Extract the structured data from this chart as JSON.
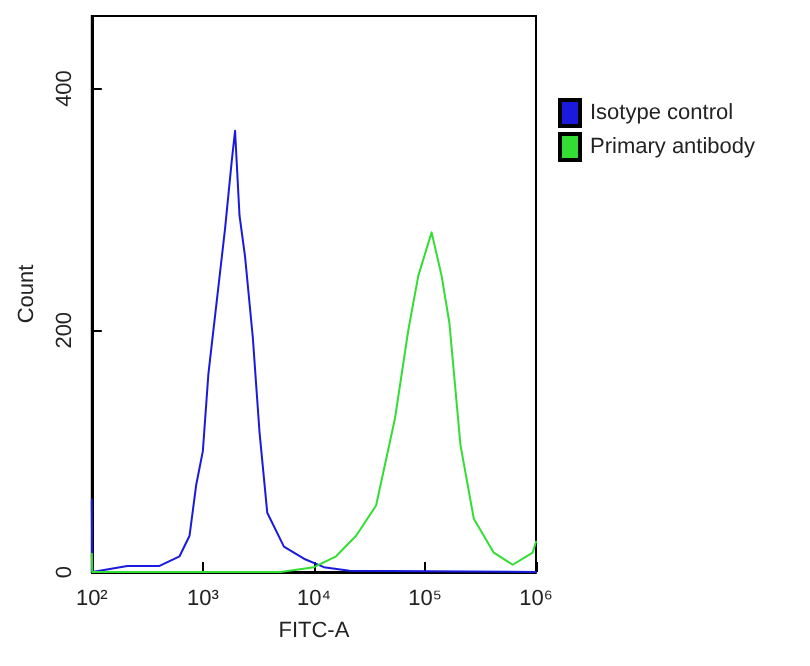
{
  "chart_data": {
    "type": "line",
    "xlabel": "FITC-A",
    "ylabel": "Count",
    "log": "x",
    "xlim": [
      100,
      1000000
    ],
    "xticks": [
      {
        "value": 100,
        "label": "10²"
      },
      {
        "value": 1000,
        "label": "10³"
      },
      {
        "value": 10000,
        "label": "10⁴"
      },
      {
        "value": 100000,
        "label": "10⁵"
      },
      {
        "value": 1000000,
        "label": "10⁶"
      }
    ],
    "ylim": [
      0,
      460
    ],
    "yticks": [
      0,
      200,
      400
    ],
    "grid": false,
    "legend": "right",
    "marker": "none",
    "line_style": "solid",
    "series": [
      {
        "name": "Isotype control",
        "color": "#1a1adc",
        "x": [
          100,
          101,
          209,
          407,
          617,
          759,
          871,
          1000,
          1122,
          1349,
          1585,
          1820,
          1950,
          2138,
          2399,
          2818,
          3236,
          3802,
          5370,
          8128,
          12300,
          20900,
          1000000
        ],
        "values": [
          60,
          0,
          5,
          5,
          13,
          30,
          72,
          100,
          164,
          228,
          284,
          340,
          365,
          295,
          261,
          194,
          116,
          49,
          21,
          11,
          4,
          1,
          0
        ]
      },
      {
        "name": "Primary antibody",
        "color": "#33dd33",
        "x": [
          100,
          101,
          200,
          5000,
          10000,
          15850,
          23990,
          36310,
          53700,
          70800,
          87100,
          114800,
          141300,
          166000,
          208900,
          275400,
          416900,
          616600,
          933300,
          1000000
        ],
        "values": [
          15,
          0,
          0,
          0,
          4,
          13,
          30,
          55,
          127,
          200,
          245,
          281,
          245,
          206,
          105,
          44,
          16,
          6,
          16,
          25
        ]
      }
    ]
  }
}
